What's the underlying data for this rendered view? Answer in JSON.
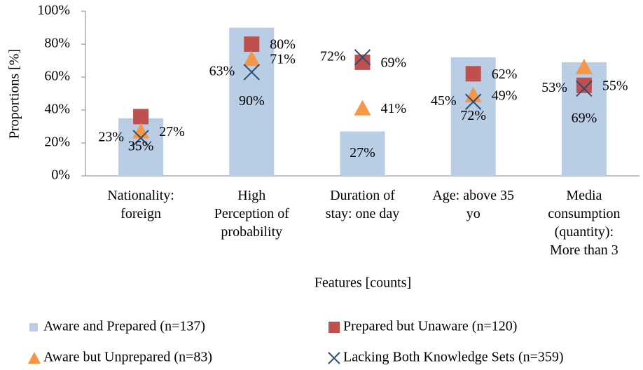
{
  "chart_data": {
    "type": "bar",
    "y_label": "Proportions [%]",
    "x_label": "Features [counts]",
    "categories": [
      "Nationality:\nforeign",
      "High\nPerception of\nprobability",
      "Duration of\nstay: one day",
      "Age:  above 35\nyo",
      "Media\nconsumption\n(quantity):\nMore than 3"
    ],
    "ylim": [
      0,
      100
    ],
    "yticks": [
      {
        "value": 0,
        "label": "0%"
      },
      {
        "value": 20,
        "label": "20%"
      },
      {
        "value": 40,
        "label": "40%"
      },
      {
        "value": 60,
        "label": "60%"
      },
      {
        "value": 80,
        "label": "80%"
      },
      {
        "value": 100,
        "label": "100%"
      }
    ],
    "grid": false,
    "legend": "bottom",
    "series": [
      {
        "name": "Aware and Prepared (n=137)",
        "type": "bar",
        "color": "#b9cde5",
        "values": [
          35,
          90,
          27,
          72,
          69
        ],
        "value_labels": [
          "35%",
          "90%",
          "27%",
          "72%",
          "69%"
        ]
      },
      {
        "name": "Prepared but Unaware (n=120)",
        "type": "square",
        "color": "#c0504d",
        "values": [
          36,
          80,
          69,
          62,
          55
        ],
        "value_labels": [
          null,
          "80%",
          "69%",
          "62%",
          "55%"
        ]
      },
      {
        "name": "Aware but Unprepared (n=83)",
        "type": "triangle",
        "color": "#f79646",
        "values": [
          27,
          71,
          41,
          49,
          66
        ],
        "value_labels": [
          "27%",
          "71%",
          "41%",
          "49%",
          null
        ]
      },
      {
        "name": "Lacking Both Knowledge Sets (n=359)",
        "type": "cross",
        "color": "#2c4d75",
        "values": [
          23,
          63,
          72,
          45,
          53
        ],
        "value_labels": [
          "23%",
          "63%",
          "72%",
          "45%",
          "53%"
        ]
      }
    ]
  }
}
